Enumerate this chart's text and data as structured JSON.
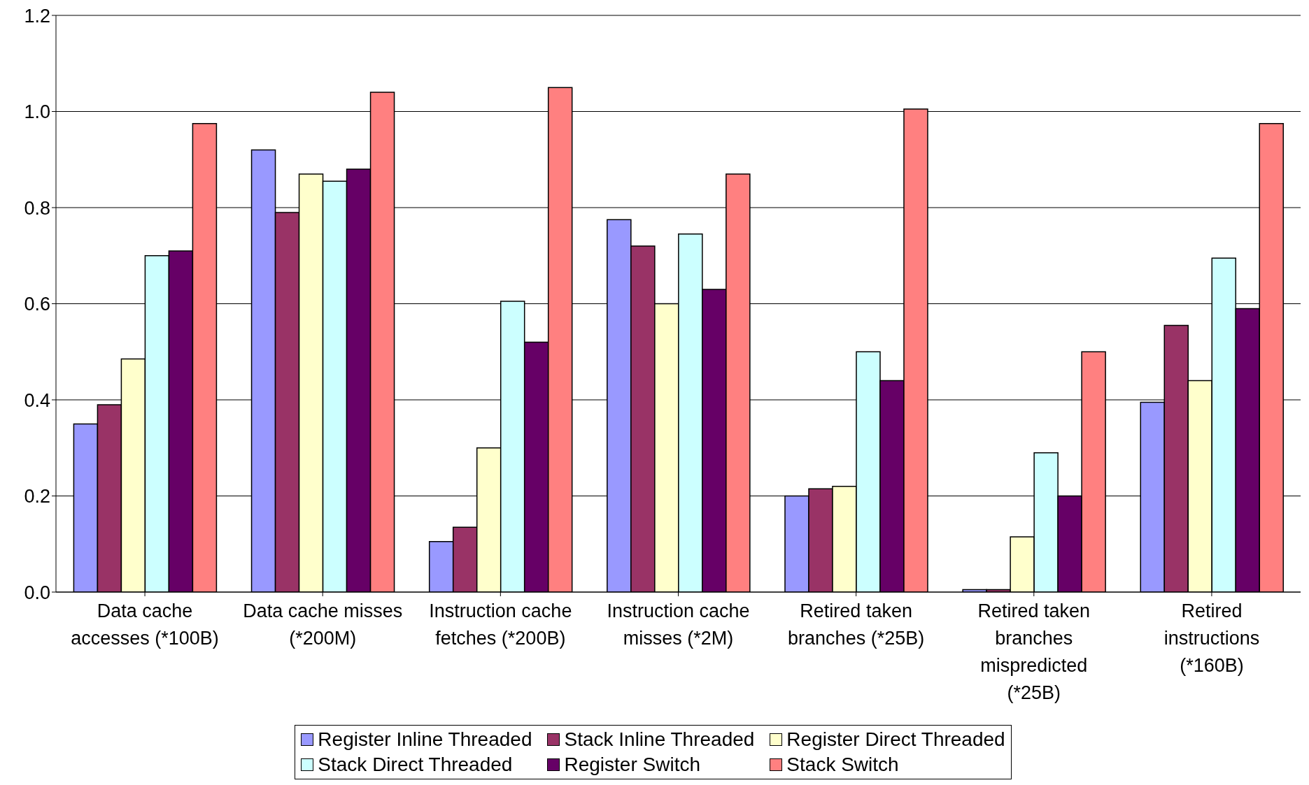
{
  "chart_data": {
    "type": "bar",
    "categories": [
      "Data cache accesses (*100B)",
      "Data cache misses (*200M)",
      "Instruction cache fetches (*200B)",
      "Instruction cache misses (*2M)",
      "Retired taken branches (*25B)",
      "Retired taken branches mispredicted (*25B)",
      "Retired instructions (*160B)"
    ],
    "series": [
      {
        "name": "Register Inline Threaded",
        "color": "#9999ff",
        "values": [
          0.35,
          0.92,
          0.105,
          0.775,
          0.2,
          0.005,
          0.395
        ]
      },
      {
        "name": "Stack Inline Threaded",
        "color": "#993366",
        "values": [
          0.39,
          0.79,
          0.135,
          0.72,
          0.215,
          0.005,
          0.555
        ]
      },
      {
        "name": "Register Direct Threaded",
        "color": "#ffffcc",
        "values": [
          0.485,
          0.87,
          0.3,
          0.6,
          0.22,
          0.115,
          0.44
        ]
      },
      {
        "name": "Stack Direct Threaded",
        "color": "#ccffff",
        "values": [
          0.7,
          0.855,
          0.605,
          0.745,
          0.5,
          0.29,
          0.695
        ]
      },
      {
        "name": "Register Switch",
        "color": "#660066",
        "values": [
          0.71,
          0.88,
          0.52,
          0.63,
          0.44,
          0.2,
          0.59
        ]
      },
      {
        "name": "Stack Switch",
        "color": "#ff8080",
        "values": [
          0.975,
          1.04,
          1.05,
          0.87,
          1.005,
          0.5,
          0.975
        ]
      }
    ],
    "ylim": [
      0,
      1.2
    ],
    "yticks": [
      {
        "value": 0,
        "label": "0.0"
      },
      {
        "value": 0.2,
        "label": "0.2"
      },
      {
        "value": 0.4,
        "label": "0.4"
      },
      {
        "value": 0.6,
        "label": "0.6"
      },
      {
        "value": 0.8,
        "label": "0.8"
      },
      {
        "value": 1.0,
        "label": "1.0"
      },
      {
        "value": 1.2,
        "label": "1.2"
      }
    ],
    "grid": "y",
    "legend": "bottom"
  }
}
